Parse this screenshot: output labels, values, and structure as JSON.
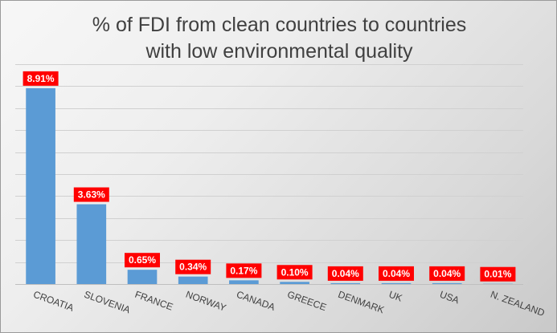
{
  "chart_data": {
    "type": "bar",
    "title": "% of FDI from clean countries to countries\nwith low environmental quality",
    "xlabel": "",
    "ylabel": "",
    "categories": [
      "CROATIA",
      "SLOVENIA",
      "FRANCE",
      "NORWAY",
      "CANADA",
      "GREECE",
      "DENMARK",
      "UK",
      "USA",
      "N. ZEALAND"
    ],
    "values": [
      8.91,
      3.63,
      0.65,
      0.34,
      0.17,
      0.1,
      0.04,
      0.04,
      0.04,
      0.01
    ],
    "data_labels": [
      "8.91%",
      "3.63%",
      "0.65%",
      "0.34%",
      "0.17%",
      "0.10%",
      "0.04%",
      "0.04%",
      "0.04%",
      "0.01%"
    ],
    "ylim": [
      0,
      10
    ],
    "gridlines": true,
    "show_y_axis_labels": false,
    "legend": "none",
    "colors": {
      "bar": "#5b9bd5",
      "label_background": "#ff0000",
      "label_text": "#ffffff",
      "title": "#404040",
      "gridline": "#d0d0d0",
      "axis": "#bfbfbf"
    }
  }
}
